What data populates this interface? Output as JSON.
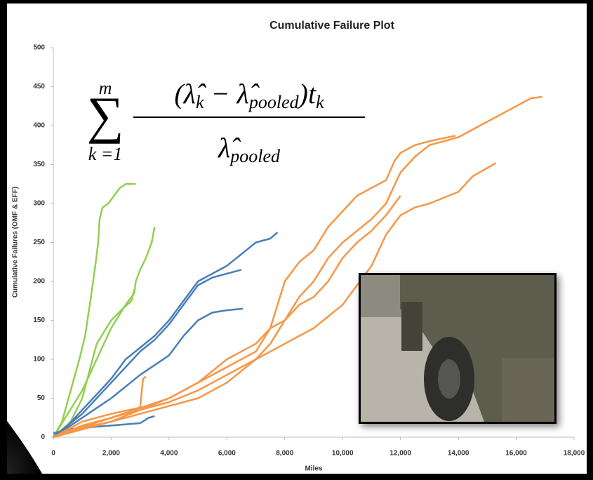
{
  "chart_data": {
    "type": "line",
    "title": "Cumulative Failure Plot",
    "x_label": "Miles",
    "y_label": "Cumulative Failures (OMF & EFF)",
    "xlim": [
      0,
      18000
    ],
    "ylim": [
      0,
      500
    ],
    "xticks": [
      0,
      {
        "value": 2000,
        "label": "2,000"
      },
      {
        "value": 4000,
        "label": "4,000"
      },
      {
        "value": 6000,
        "label": "6,000"
      },
      {
        "value": 8000,
        "label": "8,000"
      },
      {
        "value": 10000,
        "label": "10,000"
      },
      {
        "value": 12000,
        "label": "12,000"
      },
      {
        "value": 14000,
        "label": "14,000"
      },
      {
        "value": 16000,
        "label": "16,000"
      },
      {
        "value": 18000,
        "label": "18,000"
      }
    ],
    "yticks": [
      0,
      50,
      100,
      150,
      200,
      250,
      300,
      350,
      400,
      450,
      500
    ],
    "grid": false,
    "annotation": {
      "sum": "∑",
      "upper": "m",
      "lower": "k =1",
      "numerator": [
        "(λ̂",
        "k",
        " − λ̂",
        "pooled",
        ")t",
        "k"
      ],
      "denominator": [
        "λ̂",
        "pooled"
      ]
    },
    "series": [
      {
        "color": "#92d050",
        "x": [
          0,
          300,
          600,
          900,
          1100,
          1300,
          1450,
          1550,
          1600,
          1700,
          1900,
          2100,
          2300,
          2500,
          2850
        ],
        "values": [
          0,
          20,
          60,
          100,
          130,
          180,
          220,
          250,
          280,
          295,
          300,
          310,
          320,
          325,
          325
        ]
      },
      {
        "color": "#92d050",
        "x": [
          0,
          500,
          1000,
          1500,
          2000,
          2500,
          2800,
          2850,
          3000,
          3200,
          3400,
          3500
        ],
        "values": [
          0,
          30,
          60,
          100,
          140,
          170,
          185,
          200,
          215,
          230,
          250,
          270
        ]
      },
      {
        "color": "#92d050",
        "x": [
          0,
          600,
          1000,
          1500,
          2000,
          2400,
          2700,
          2800
        ],
        "values": [
          0,
          20,
          50,
          120,
          150,
          165,
          175,
          190
        ]
      },
      {
        "color": "#4a7ebb",
        "x": [
          0,
          500,
          1000,
          1500,
          2000,
          2500,
          3000,
          3500,
          4000,
          4500,
          5000,
          5500,
          6000,
          6500,
          7000,
          7500,
          7750
        ],
        "values": [
          0,
          15,
          35,
          55,
          75,
          100,
          115,
          130,
          150,
          175,
          200,
          210,
          220,
          235,
          250,
          255,
          263
        ]
      },
      {
        "color": "#4a7ebb",
        "x": [
          0,
          1000,
          2000,
          3000,
          3500,
          4000,
          4500,
          5000,
          5500,
          6000,
          6500
        ],
        "values": [
          0,
          30,
          70,
          110,
          125,
          145,
          170,
          195,
          205,
          210,
          215
        ]
      },
      {
        "color": "#4a7ebb",
        "x": [
          0,
          1000,
          2000,
          3000,
          4000,
          4500,
          5000,
          5500,
          6000,
          6550
        ],
        "values": [
          0,
          25,
          50,
          80,
          105,
          130,
          150,
          160,
          163,
          165
        ]
      },
      {
        "color": "#4a7ebb",
        "x": [
          0,
          500,
          1000,
          2000,
          3000,
          3300,
          3500
        ],
        "values": [
          5,
          10,
          12,
          15,
          18,
          25,
          27
        ]
      },
      {
        "color": "#f79646",
        "x": [
          0,
          1000,
          2000,
          3000,
          4000,
          5000,
          6000,
          7000,
          7500,
          8000,
          8500,
          9000,
          9500,
          10000,
          11000,
          11500,
          12000,
          12500,
          13000,
          14000,
          15000,
          16000,
          16500,
          16900
        ],
        "values": [
          0,
          10,
          20,
          30,
          40,
          50,
          70,
          100,
          120,
          150,
          180,
          200,
          230,
          250,
          280,
          300,
          340,
          360,
          375,
          385,
          405,
          425,
          435,
          437
        ]
      },
      {
        "color": "#f79646",
        "x": [
          0,
          1000,
          2000,
          3000,
          4000,
          5000,
          6000,
          7000,
          7500,
          8000,
          8500,
          9000,
          9500,
          10000,
          10500,
          11000,
          11500,
          11800,
          12000,
          12500,
          13000,
          13900
        ],
        "values": [
          0,
          15,
          25,
          35,
          50,
          70,
          100,
          120,
          140,
          200,
          225,
          240,
          270,
          290,
          310,
          320,
          330,
          355,
          365,
          375,
          380,
          387
        ]
      },
      {
        "color": "#f79646",
        "x": [
          0,
          1000,
          2000,
          3000,
          4000,
          5000,
          6000,
          7000,
          8000,
          9000,
          10000,
          11000,
          11500,
          12000,
          12500,
          13000,
          14000,
          14500,
          15300
        ],
        "values": [
          0,
          12,
          20,
          35,
          45,
          60,
          80,
          100,
          120,
          140,
          170,
          220,
          260,
          285,
          295,
          300,
          315,
          335,
          352
        ]
      },
      {
        "color": "#f79646",
        "x": [
          0,
          1000,
          2000,
          3000,
          3100,
          3200
        ],
        "values": [
          0,
          20,
          30,
          38,
          75,
          78
        ]
      },
      {
        "color": "#f79646",
        "x": [
          0,
          2000,
          4000,
          6000,
          7000,
          7500,
          8000,
          8500,
          9000,
          9500,
          10000,
          10500,
          11000,
          11500,
          12000
        ],
        "values": [
          0,
          25,
          50,
          90,
          110,
          140,
          150,
          170,
          180,
          200,
          230,
          250,
          265,
          285,
          310
        ]
      }
    ]
  }
}
